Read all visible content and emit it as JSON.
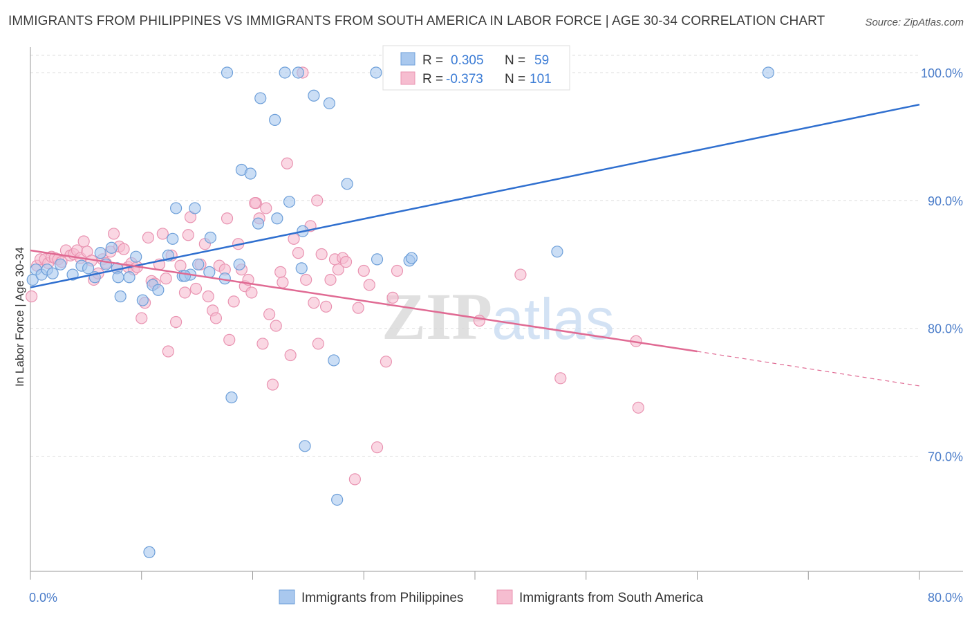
{
  "title": "IMMIGRANTS FROM PHILIPPINES VS IMMIGRANTS FROM SOUTH AMERICA IN LABOR FORCE | AGE 30-34 CORRELATION CHART",
  "source": "Source: ZipAtlas.com",
  "watermark": {
    "zip": "ZIP",
    "atlas": "atlas"
  },
  "legend": {
    "r_label": "R =",
    "n_label": "N =",
    "philippines": {
      "r": "0.305",
      "n": "59"
    },
    "south_america": {
      "r": "-0.373",
      "n": "101"
    }
  },
  "bottom_legend": {
    "philippines": "Immigrants from Philippines",
    "south_america": "Immigrants from South America"
  },
  "colors": {
    "philippines_fill": "#a9c8ee",
    "philippines_stroke": "#6d9fd9",
    "philippines_line": "#2f6fcf",
    "south_america_fill": "#f6bdd0",
    "south_america_stroke": "#e993b1",
    "south_america_line": "#e06a93",
    "grid": "#dddddd",
    "tick_text": "#4a7cc9"
  },
  "chart_data": {
    "type": "scatter",
    "title": "IMMIGRANTS FROM PHILIPPINES VS IMMIGRANTS FROM SOUTH AMERICA IN LABOR FORCE | AGE 30-34 CORRELATION CHART",
    "xlabel": "",
    "ylabel": "In Labor Force | Age 30-34",
    "xlim": [
      0,
      80
    ],
    "ylim": [
      61,
      102
    ],
    "x_tick_labels": [
      "0.0%",
      "80.0%"
    ],
    "y_ticks": [
      70,
      80,
      90,
      100
    ],
    "y_tick_labels": [
      "70.0%",
      "80.0%",
      "90.0%",
      "100.0%"
    ],
    "grid": true,
    "legend_position": "top-center",
    "series": [
      {
        "name": "Immigrants from Philippines",
        "r": 0.305,
        "n": 59,
        "trend": {
          "x": [
            0,
            80
          ],
          "y": [
            83.2,
            97.5
          ]
        },
        "points": [
          [
            0.2,
            83.8
          ],
          [
            0.5,
            84.6
          ],
          [
            1.0,
            84.2
          ],
          [
            1.5,
            84.6
          ],
          [
            2.0,
            84.3
          ],
          [
            2.7,
            85.0
          ],
          [
            3.8,
            84.2
          ],
          [
            4.6,
            84.9
          ],
          [
            5.2,
            84.7
          ],
          [
            5.8,
            84.0
          ],
          [
            6.3,
            85.9
          ],
          [
            6.8,
            85.0
          ],
          [
            7.3,
            86.3
          ],
          [
            7.8,
            84.7
          ],
          [
            7.9,
            84.0
          ],
          [
            8.1,
            82.5
          ],
          [
            8.9,
            84.0
          ],
          [
            9.5,
            85.6
          ],
          [
            10.1,
            82.2
          ],
          [
            11.0,
            83.4
          ],
          [
            11.5,
            83.0
          ],
          [
            12.4,
            85.7
          ],
          [
            12.8,
            87.0
          ],
          [
            13.1,
            89.4
          ],
          [
            13.7,
            84.1
          ],
          [
            14.4,
            84.2
          ],
          [
            14.8,
            89.4
          ],
          [
            15.1,
            85.0
          ],
          [
            16.1,
            84.4
          ],
          [
            16.2,
            87.1
          ],
          [
            17.5,
            83.9
          ],
          [
            18.1,
            74.6
          ],
          [
            18.8,
            85.0
          ],
          [
            19.0,
            92.4
          ],
          [
            19.8,
            92.1
          ],
          [
            20.5,
            88.2
          ],
          [
            20.7,
            98.0
          ],
          [
            22.0,
            96.3
          ],
          [
            22.2,
            88.6
          ],
          [
            23.3,
            89.9
          ],
          [
            24.4,
            84.7
          ],
          [
            24.5,
            87.6
          ],
          [
            24.7,
            70.8
          ],
          [
            25.5,
            98.2
          ],
          [
            26.9,
            97.6
          ],
          [
            27.3,
            77.5
          ],
          [
            27.6,
            66.6
          ],
          [
            28.5,
            91.3
          ],
          [
            31.2,
            85.4
          ],
          [
            34.1,
            85.3
          ],
          [
            34.3,
            85.5
          ],
          [
            47.4,
            86.0
          ],
          [
            10.7,
            62.5
          ],
          [
            17.7,
            100.0
          ],
          [
            22.9,
            100.0
          ],
          [
            31.1,
            100.0
          ],
          [
            66.4,
            100.0
          ],
          [
            13.9,
            84.1
          ],
          [
            24.1,
            100.0
          ]
        ]
      },
      {
        "name": "Immigrants from South America",
        "r": -0.373,
        "n": 101,
        "trend": {
          "x": [
            0,
            60
          ],
          "y": [
            86.1,
            78.2
          ]
        },
        "trend_dashed": {
          "x": [
            60,
            80
          ],
          "y": [
            78.2,
            75.5
          ]
        },
        "points": [
          [
            0.1,
            82.5
          ],
          [
            0.6,
            84.9
          ],
          [
            0.9,
            85.4
          ],
          [
            1.3,
            85.4
          ],
          [
            1.6,
            85.1
          ],
          [
            1.9,
            85.6
          ],
          [
            2.2,
            85.5
          ],
          [
            2.5,
            85.4
          ],
          [
            2.8,
            85.2
          ],
          [
            3.2,
            86.1
          ],
          [
            3.6,
            85.7
          ],
          [
            3.9,
            85.8
          ],
          [
            4.2,
            86.1
          ],
          [
            4.5,
            85.5
          ],
          [
            4.8,
            86.8
          ],
          [
            5.1,
            86.0
          ],
          [
            5.5,
            85.3
          ],
          [
            5.7,
            83.8
          ],
          [
            6.1,
            84.3
          ],
          [
            6.5,
            85.4
          ],
          [
            6.8,
            85.1
          ],
          [
            7.2,
            86.0
          ],
          [
            7.5,
            87.4
          ],
          [
            7.8,
            84.7
          ],
          [
            8.0,
            86.4
          ],
          [
            8.4,
            86.2
          ],
          [
            8.8,
            84.8
          ],
          [
            9.1,
            85.1
          ],
          [
            9.3,
            84.6
          ],
          [
            9.6,
            84.8
          ],
          [
            10.0,
            80.8
          ],
          [
            10.3,
            82.0
          ],
          [
            10.6,
            87.1
          ],
          [
            10.9,
            83.7
          ],
          [
            11.2,
            83.5
          ],
          [
            11.6,
            85.0
          ],
          [
            11.9,
            87.4
          ],
          [
            12.2,
            83.9
          ],
          [
            12.4,
            78.2
          ],
          [
            12.7,
            85.7
          ],
          [
            13.1,
            80.5
          ],
          [
            13.5,
            84.9
          ],
          [
            13.9,
            82.8
          ],
          [
            14.2,
            87.3
          ],
          [
            14.4,
            88.7
          ],
          [
            14.9,
            83.1
          ],
          [
            15.3,
            85.0
          ],
          [
            15.7,
            86.6
          ],
          [
            16.0,
            82.5
          ],
          [
            16.4,
            81.4
          ],
          [
            16.7,
            80.8
          ],
          [
            17.0,
            84.9
          ],
          [
            17.5,
            84.6
          ],
          [
            17.7,
            88.6
          ],
          [
            17.9,
            79.1
          ],
          [
            18.3,
            82.1
          ],
          [
            18.7,
            86.6
          ],
          [
            19.0,
            84.6
          ],
          [
            19.3,
            83.3
          ],
          [
            19.6,
            83.8
          ],
          [
            19.9,
            82.8
          ],
          [
            20.3,
            89.8
          ],
          [
            20.6,
            88.6
          ],
          [
            20.9,
            78.8
          ],
          [
            21.2,
            89.4
          ],
          [
            21.5,
            81.1
          ],
          [
            21.8,
            75.6
          ],
          [
            22.1,
            80.2
          ],
          [
            22.5,
            84.4
          ],
          [
            22.7,
            83.6
          ],
          [
            23.1,
            92.9
          ],
          [
            23.4,
            77.9
          ],
          [
            23.7,
            87.0
          ],
          [
            24.1,
            85.9
          ],
          [
            24.5,
            100.0
          ],
          [
            24.8,
            83.8
          ],
          [
            25.2,
            88.0
          ],
          [
            25.5,
            82.0
          ],
          [
            25.9,
            78.8
          ],
          [
            26.2,
            85.8
          ],
          [
            26.6,
            81.7
          ],
          [
            27.0,
            83.8
          ],
          [
            27.4,
            85.4
          ],
          [
            27.7,
            84.6
          ],
          [
            28.1,
            85.5
          ],
          [
            28.4,
            85.2
          ],
          [
            29.2,
            68.2
          ],
          [
            29.5,
            81.6
          ],
          [
            30.0,
            84.5
          ],
          [
            30.5,
            83.4
          ],
          [
            31.2,
            70.7
          ],
          [
            32.0,
            77.4
          ],
          [
            32.6,
            82.4
          ],
          [
            33.0,
            84.5
          ],
          [
            40.4,
            80.6
          ],
          [
            44.1,
            84.2
          ],
          [
            47.7,
            76.1
          ],
          [
            54.7,
            73.8
          ],
          [
            54.5,
            79.0
          ],
          [
            25.8,
            90.0
          ],
          [
            20.2,
            89.8
          ]
        ]
      }
    ]
  }
}
